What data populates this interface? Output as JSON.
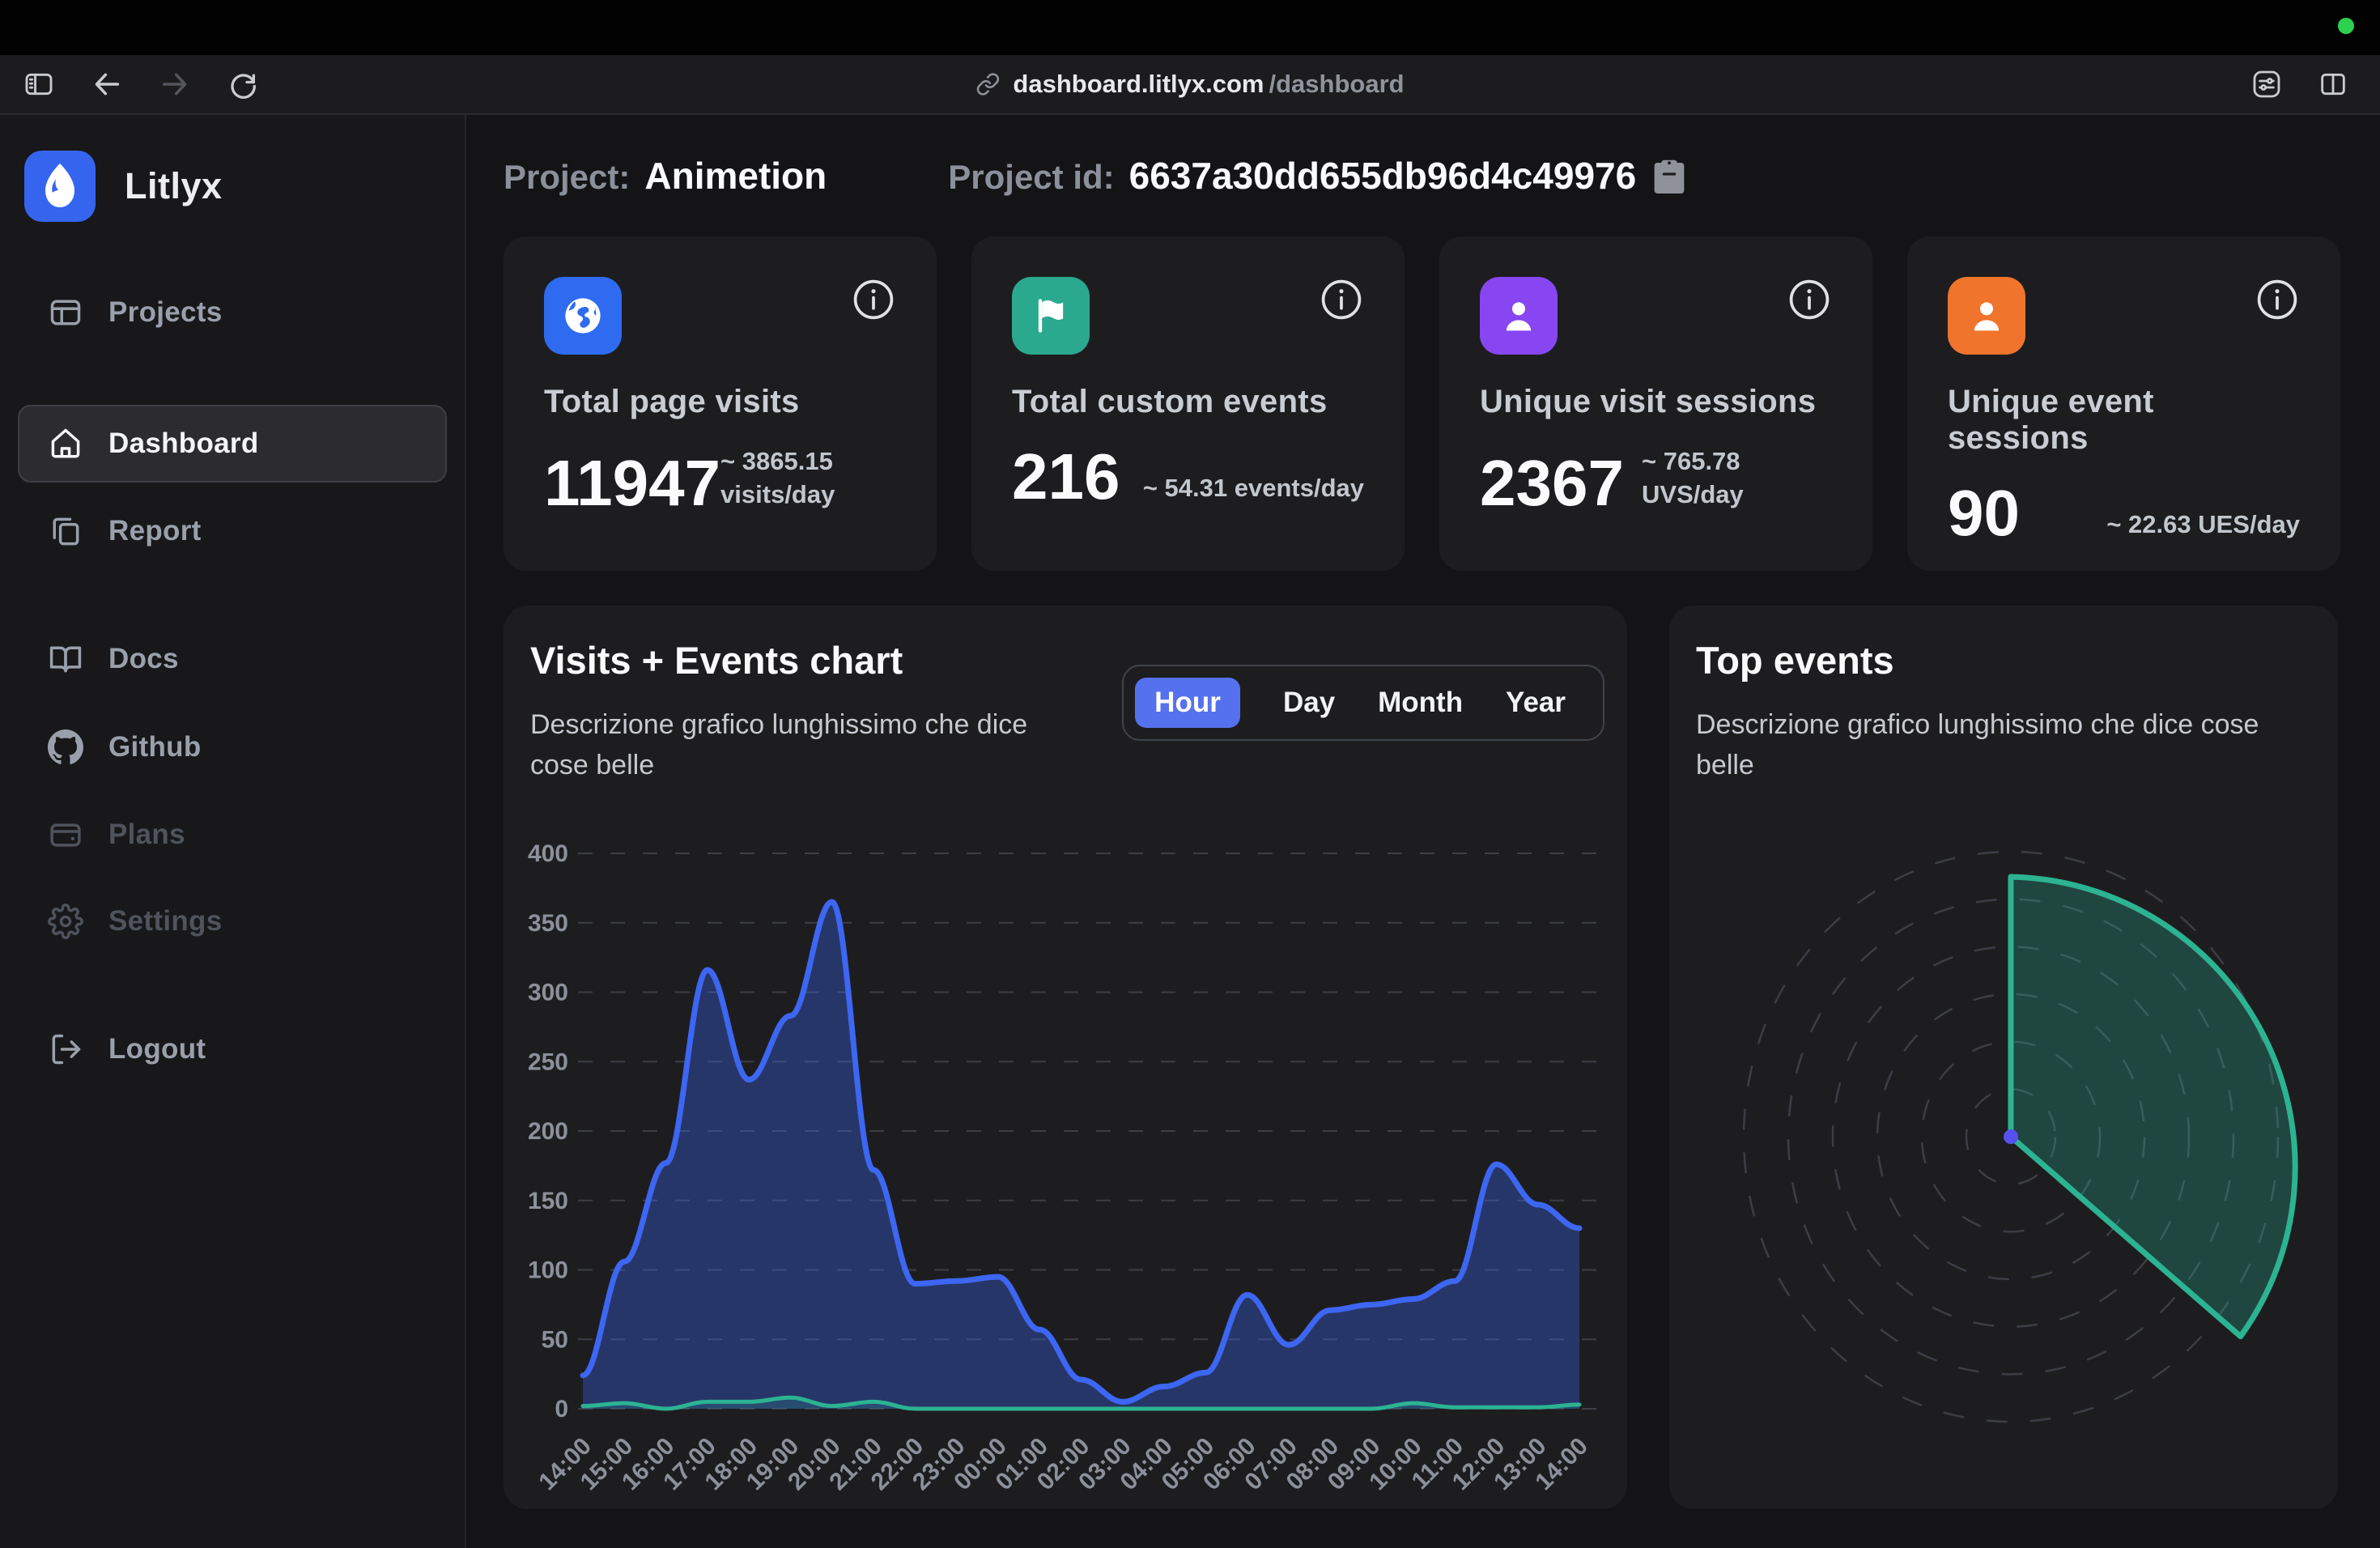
{
  "menubar": {
    "record_dot_color": "#2bd14f"
  },
  "browser": {
    "url_host": "dashboard.litlyx.com",
    "url_path": "/dashboard",
    "toolbar_icons": [
      "sidebar-toggle-icon",
      "back-icon",
      "forward-icon",
      "reload-icon",
      "link-icon",
      "tune-icon",
      "split-view-icon"
    ]
  },
  "sidebar": {
    "brand": "Litlyx",
    "brand_color": "#3565ef",
    "items": [
      {
        "label": "Projects",
        "icon": "projects-icon",
        "state": "default"
      },
      {
        "label": "Dashboard",
        "icon": "home-icon",
        "state": "active"
      },
      {
        "label": "Report",
        "icon": "report-icon",
        "state": "default"
      },
      {
        "label": "Docs",
        "icon": "docs-icon",
        "state": "default"
      },
      {
        "label": "Github",
        "icon": "github-icon",
        "state": "default"
      },
      {
        "label": "Plans",
        "icon": "plans-icon",
        "state": "disabled"
      },
      {
        "label": "Settings",
        "icon": "settings-icon",
        "state": "disabled"
      },
      {
        "label": "Logout",
        "icon": "logout-icon",
        "state": "default"
      }
    ]
  },
  "header": {
    "project_label": "Project:",
    "project_name": "Animetion",
    "project_id_label": "Project id:",
    "project_id": "6637a30dd655db96d4c49976",
    "copy_icon": "clipboard-icon"
  },
  "stat_cards": [
    {
      "title": "Total page visits",
      "value": "11947",
      "sub": "~ 3865.15 visits/day",
      "icon": "globe-icon",
      "icon_bg": "#2e6bf0"
    },
    {
      "title": "Total custom events",
      "value": "216",
      "sub": "~ 54.31 events/day",
      "icon": "flag-icon",
      "icon_bg": "#2aa98e"
    },
    {
      "title": "Unique visit sessions",
      "value": "2367",
      "sub": "~ 765.78 UVS/day",
      "icon": "user-icon",
      "icon_bg": "#8746f1"
    },
    {
      "title": "Unique event sessions",
      "value": "90",
      "sub": "~ 22.63 UES/day",
      "icon": "user-icon",
      "icon_bg": "#f1742c"
    }
  ],
  "visits_chart": {
    "title": "Visits + Events chart",
    "subtitle": "Descrizione grafico lunghissimo che dice cose belle",
    "tabs": [
      "Hour",
      "Day",
      "Month",
      "Year"
    ],
    "active_tab": "Hour",
    "chart_data": {
      "type": "area",
      "x": [
        "14:00",
        "15:00",
        "16:00",
        "17:00",
        "18:00",
        "19:00",
        "20:00",
        "21:00",
        "22:00",
        "23:00",
        "00:00",
        "01:00",
        "02:00",
        "03:00",
        "04:00",
        "05:00",
        "06:00",
        "07:00",
        "08:00",
        "09:00",
        "10:00",
        "11:00",
        "12:00",
        "13:00",
        "14:00"
      ],
      "series": [
        {
          "name": "visits",
          "color": "#3d66f2",
          "values": [
            24,
            106,
            177,
            316,
            237,
            283,
            365,
            172,
            90,
            92,
            95,
            57,
            21,
            5,
            16,
            26,
            82,
            46,
            71,
            75,
            79,
            92,
            176,
            147,
            130
          ]
        },
        {
          "name": "events",
          "color": "#2cb392",
          "values": [
            2,
            4,
            0,
            5,
            5,
            8,
            2,
            5,
            0,
            0,
            0,
            0,
            0,
            0,
            0,
            0,
            0,
            0,
            0,
            0,
            4,
            1,
            1,
            1,
            3
          ]
        }
      ],
      "ylim": [
        0,
        400
      ],
      "ytick_step": 50,
      "grid": "dashed-horizontal",
      "legend": "none"
    }
  },
  "top_events": {
    "title": "Top events",
    "subtitle": "Descrizione grafico lunghissimo che dice cose belle",
    "chart_data": {
      "type": "polar-area",
      "rings": 6,
      "slices": [
        {
          "name": "top-event",
          "start_deg": 0,
          "end_deg": 131,
          "radius_start_px": 321,
          "radius_end_px": 376,
          "color": "#2cb392"
        }
      ],
      "center_dot_color": "#5551f0",
      "legend": "none"
    }
  },
  "colors": {
    "page_bg": "#141416",
    "sidebar_bg": "#18181a",
    "card_bg": "#1d1d20",
    "toolbar_bg": "#1c1c1e",
    "accent_blue": "#5671ee",
    "chart_blue": "#3d66f2",
    "chart_green": "#2cb392",
    "grid_line": "#3b3e44",
    "muted_text": "#8b909a"
  }
}
